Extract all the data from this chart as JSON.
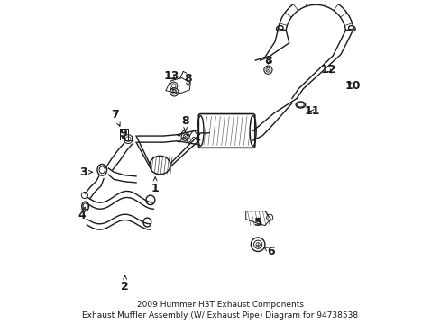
{
  "title": "2009 Hummer H3T Exhaust Components\nExhaust Muffler Assembly (W/ Exhaust Pipe) Diagram for 94738538",
  "bg_color": "#ffffff",
  "line_color": "#1a1a1a",
  "font_size": 9,
  "title_font_size": 6.5,
  "labels": {
    "1": [
      0.295,
      0.415,
      0.295,
      0.455
    ],
    "2": [
      0.2,
      0.108,
      0.2,
      0.145
    ],
    "3": [
      0.068,
      0.468,
      0.1,
      0.468
    ],
    "4": [
      0.063,
      0.33,
      0.075,
      0.36
    ],
    "5": [
      0.62,
      0.31,
      0.62,
      0.335
    ],
    "6": [
      0.66,
      0.218,
      0.635,
      0.232
    ],
    "7": [
      0.168,
      0.65,
      0.185,
      0.61
    ],
    "8a": [
      0.39,
      0.628,
      0.39,
      0.595
    ],
    "8b": [
      0.398,
      0.762,
      0.398,
      0.735
    ],
    "8c": [
      0.65,
      0.82,
      0.65,
      0.798
    ],
    "9": [
      0.193,
      0.588,
      0.193,
      0.562
    ],
    "10": [
      0.915,
      0.74,
      0.892,
      0.758
    ],
    "11": [
      0.79,
      0.66,
      0.772,
      0.66
    ],
    "12": [
      0.84,
      0.79,
      0.856,
      0.773
    ],
    "13": [
      0.345,
      0.77,
      0.365,
      0.752
    ]
  }
}
